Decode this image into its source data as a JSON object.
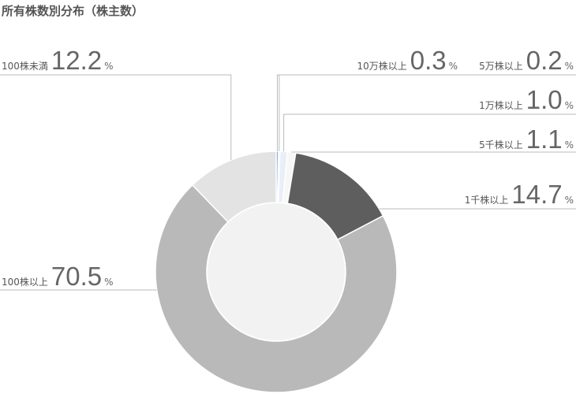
{
  "chart_data": {
    "type": "donut",
    "title": "所有株数別分布（株主数）",
    "categories": [
      "10万株以上",
      "5万株以上",
      "1万株以上",
      "5千株以上",
      "1千株以上",
      "100株以上",
      "100株未満"
    ],
    "values": [
      0.3,
      0.2,
      1.0,
      1.1,
      14.7,
      70.5,
      12.2
    ],
    "value_labels": [
      "0.3",
      "0.2",
      "1.0",
      "1.1",
      "14.7",
      "70.5",
      "12.2"
    ],
    "value_suffix": "%",
    "colors": [
      "#8aa9dc",
      "#c9d7ef",
      "#e9eef7",
      "#f7f7f7",
      "#5e5e5e",
      "#b9b9b9",
      "#e3e3e3"
    ]
  }
}
